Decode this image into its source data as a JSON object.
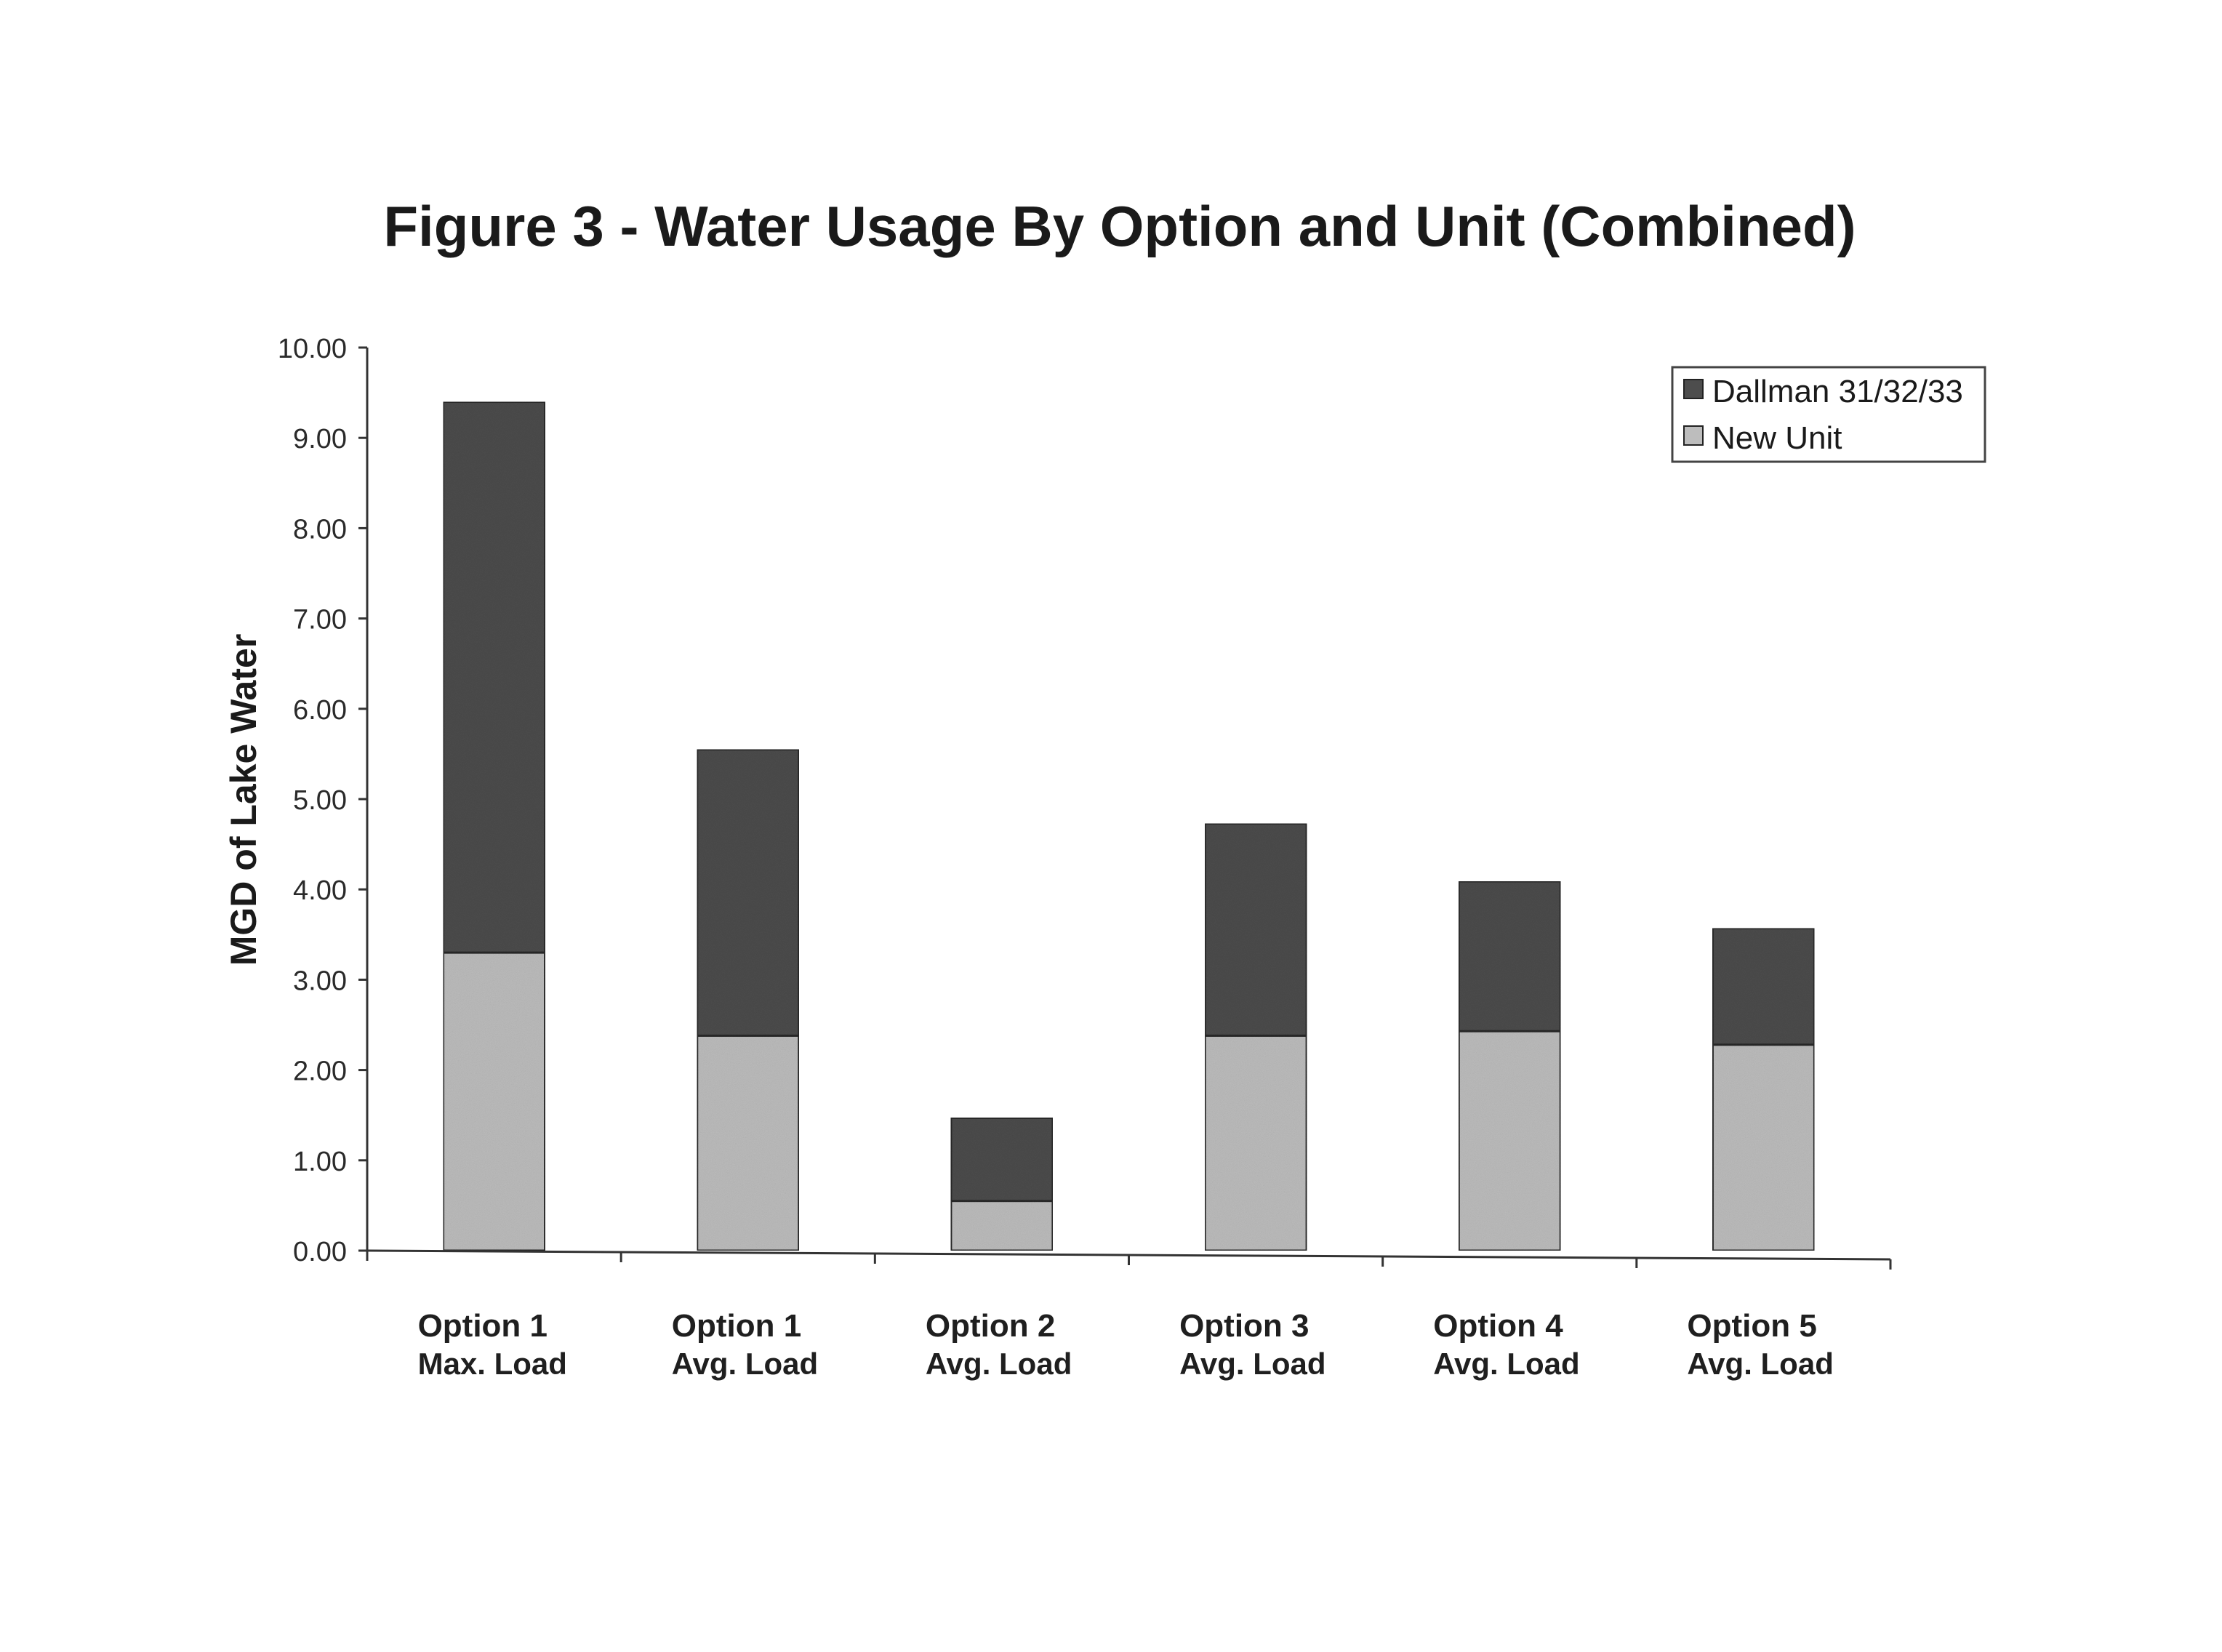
{
  "chart_data": {
    "type": "bar",
    "stacked": true,
    "title": "Figure 3 - Water Usage By Option and Unit (Combined)",
    "ylabel": "MGD of Lake Water",
    "xlabel": "",
    "ylim": [
      0,
      10
    ],
    "yticks": [
      "0.00",
      "1.00",
      "2.00",
      "3.00",
      "4.00",
      "5.00",
      "6.00",
      "7.00",
      "8.00",
      "9.00",
      "10.00"
    ],
    "categories": [
      [
        "Option 1",
        "Max. Load"
      ],
      [
        "Option 1",
        "Avg. Load"
      ],
      [
        "Option 2",
        "Avg. Load"
      ],
      [
        "Option 3",
        "Avg. Load"
      ],
      [
        "Option 4",
        "Avg. Load"
      ],
      [
        "Option 5",
        "Avg. Load"
      ]
    ],
    "series": [
      {
        "name": "New Unit",
        "color": "#bdbdbd",
        "values": [
          3.3,
          2.38,
          0.55,
          2.38,
          2.43,
          2.28
        ]
      },
      {
        "name": "Dallman 31/32/33",
        "color": "#4d4d4d",
        "values": [
          6.1,
          3.17,
          0.92,
          2.35,
          1.66,
          1.29
        ]
      }
    ],
    "legend": {
      "position": "top-right",
      "items": [
        "Dallman 31/32/33",
        "New Unit"
      ]
    },
    "grid": false
  }
}
